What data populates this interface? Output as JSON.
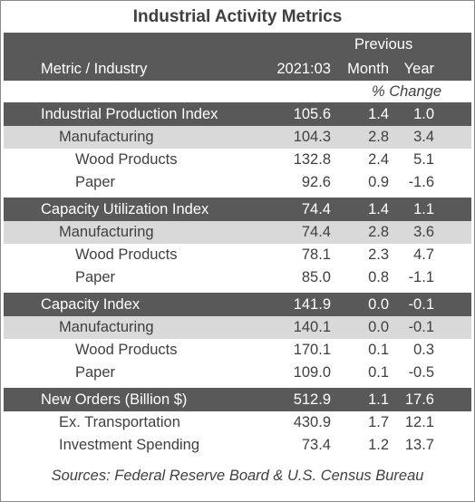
{
  "title": "Industrial Activity Metrics",
  "header": {
    "metric": "Metric / Industry",
    "current": "2021:03",
    "previous": "Previous",
    "month": "Month",
    "year": "Year",
    "change": "% Change"
  },
  "sections": [
    {
      "name": "Industrial Production Index",
      "values": [
        "105.6",
        "1.4",
        "1.0"
      ],
      "rows": [
        {
          "name": "Manufacturing",
          "values": [
            "104.3",
            "2.8",
            "3.4"
          ],
          "rows": [
            {
              "name": "Wood Products",
              "values": [
                "132.8",
                "2.4",
                "5.1"
              ]
            },
            {
              "name": "Paper",
              "values": [
                "92.6",
                "0.9",
                "-1.6"
              ]
            }
          ]
        }
      ]
    },
    {
      "name": "Capacity Utilization Index",
      "values": [
        "74.4",
        "1.4",
        "1.1"
      ],
      "rows": [
        {
          "name": "Manufacturing",
          "values": [
            "74.4",
            "2.8",
            "3.6"
          ],
          "rows": [
            {
              "name": "Wood Products",
              "values": [
                "78.1",
                "2.3",
                "4.7"
              ]
            },
            {
              "name": "Paper",
              "values": [
                "85.0",
                "0.8",
                "-1.1"
              ]
            }
          ]
        }
      ]
    },
    {
      "name": "Capacity Index",
      "values": [
        "141.9",
        "0.0",
        "-0.1"
      ],
      "rows": [
        {
          "name": "Manufacturing",
          "values": [
            "140.1",
            "0.0",
            "-0.1"
          ],
          "rows": [
            {
              "name": "Wood Products",
              "values": [
                "170.1",
                "0.1",
                "0.3"
              ]
            },
            {
              "name": "Paper",
              "values": [
                "109.0",
                "0.1",
                "-0.5"
              ]
            }
          ]
        }
      ]
    },
    {
      "name": "New Orders (Billion $)",
      "values": [
        "512.9",
        "1.1",
        "17.6"
      ],
      "rows": [
        {
          "name": "Ex. Transportation",
          "values": [
            "430.9",
            "1.7",
            "12.1"
          ]
        },
        {
          "name": "Investment Spending",
          "values": [
            "73.4",
            "1.2",
            "13.7"
          ]
        }
      ]
    }
  ],
  "footer": "Sources: Federal Reserve Board & U.S. Census Bureau"
}
